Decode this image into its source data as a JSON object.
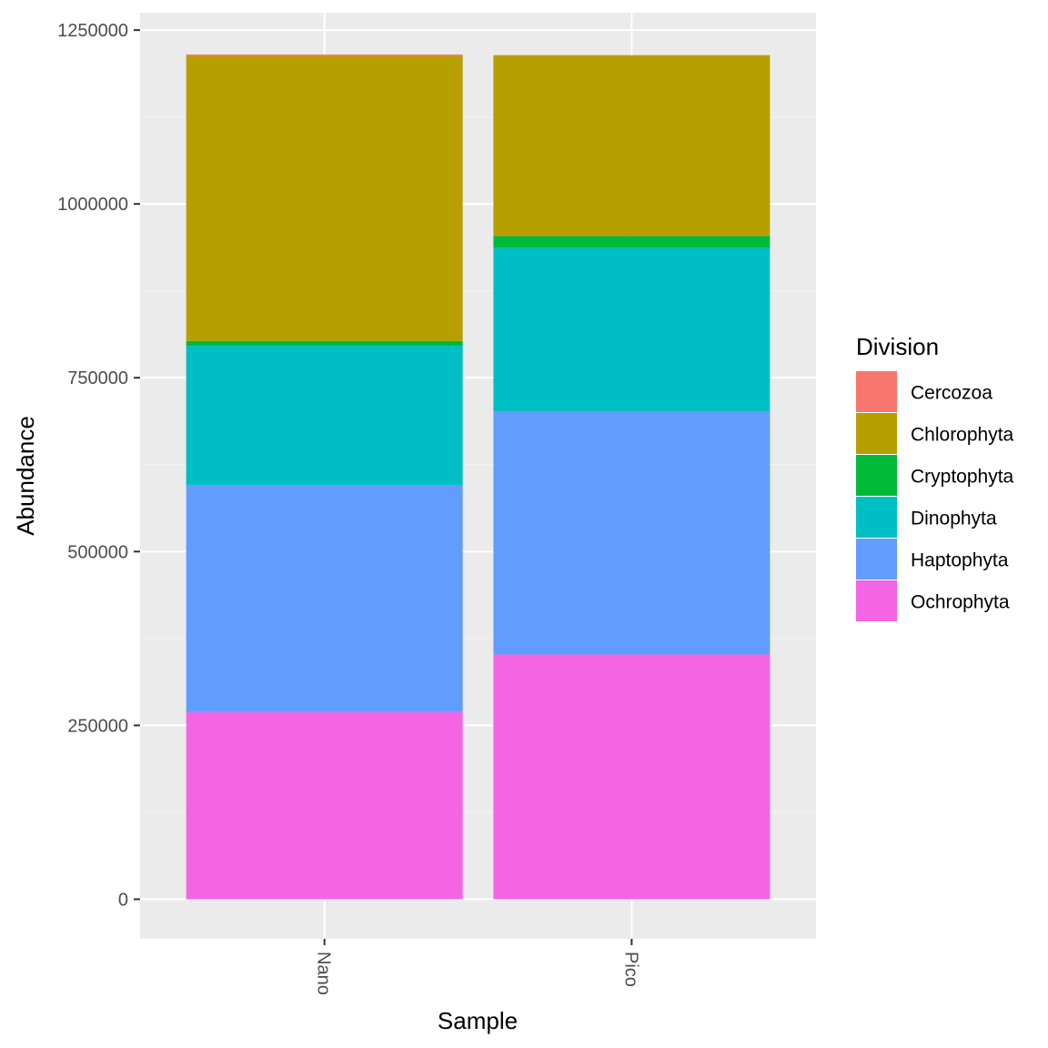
{
  "chart_data": {
    "type": "bar",
    "stacked": true,
    "title": "",
    "xlabel": "Sample",
    "ylabel": "Abundance",
    "ylim": [
      -57000,
      1275000
    ],
    "yticks": [
      0,
      250000,
      500000,
      750000,
      1000000,
      1250000
    ],
    "ytick_labels": [
      "0",
      "250000",
      "500000",
      "750000",
      "1000000",
      "1250000"
    ],
    "categories": [
      "Nano",
      "Pico"
    ],
    "grid": true,
    "legend_position": "right",
    "legend_title": "Division",
    "series": [
      {
        "name": "Ochrophyta",
        "color": "#F564E3",
        "values": [
          269000,
          352000
        ]
      },
      {
        "name": "Haptophyta",
        "color": "#619CFF",
        "values": [
          327000,
          350000
        ]
      },
      {
        "name": "Dinophyta",
        "color": "#00BFC4",
        "values": [
          200000,
          235000
        ]
      },
      {
        "name": "Cryptophyta",
        "color": "#00BA38",
        "values": [
          7000,
          17000
        ]
      },
      {
        "name": "Chlorophyta",
        "color": "#B79F00",
        "values": [
          410000,
          260000
        ]
      },
      {
        "name": "Cercozoa",
        "color": "#F8766D",
        "values": [
          2000,
          0
        ]
      }
    ],
    "legend_order": [
      "Cercozoa",
      "Chlorophyta",
      "Cryptophyta",
      "Dinophyta",
      "Haptophyta",
      "Ochrophyta"
    ]
  },
  "colors": {
    "panel_background": "#EBEBEB",
    "grid_major": "#FFFFFF",
    "grid_minor": "#F4F4F4",
    "tick": "#333333"
  }
}
